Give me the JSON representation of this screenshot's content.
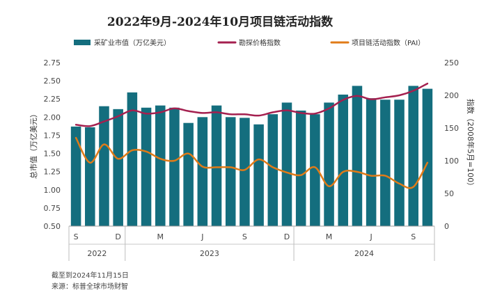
{
  "chart_data": {
    "type": "bar+line",
    "title": "2022年9月-2024年10月项目链活动指数",
    "legend": [
      {
        "label": "采矿业市值（万亿美元）",
        "kind": "bar",
        "color": "#146e7e"
      },
      {
        "label": "勘探价格指数",
        "kind": "line",
        "color": "#a4204f"
      },
      {
        "label": "项目链活动指数（PAI）",
        "kind": "line",
        "color": "#e07b18"
      }
    ],
    "ylabel_left": "总市值（万亿美元）",
    "ylabel_right": "指数（2008年5月=100）",
    "ylim_left": [
      0.5,
      2.75
    ],
    "ylim_right": [
      0,
      250
    ],
    "y_ticks_left": [
      "0.50",
      "0.75",
      "1.00",
      "1.25",
      "1.50",
      "1.75",
      "2.00",
      "2.25",
      "2.50",
      "2.75"
    ],
    "y_ticks_right": [
      "0",
      "50",
      "100",
      "150",
      "200",
      "250"
    ],
    "x_ticks": [
      {
        "index": 0,
        "label": "S"
      },
      {
        "index": 3,
        "label": "D"
      },
      {
        "index": 6,
        "label": "M"
      },
      {
        "index": 9,
        "label": "J"
      },
      {
        "index": 12,
        "label": "S"
      },
      {
        "index": 15,
        "label": "D"
      },
      {
        "index": 18,
        "label": "M"
      },
      {
        "index": 21,
        "label": "J"
      },
      {
        "index": 24,
        "label": "S"
      }
    ],
    "year_groups": [
      {
        "label": "2022",
        "start": 0,
        "end": 3
      },
      {
        "label": "2023",
        "start": 4,
        "end": 15
      },
      {
        "label": "2024",
        "start": 16,
        "end": 25
      }
    ],
    "months": [
      "2022-09",
      "2022-10",
      "2022-11",
      "2022-12",
      "2023-01",
      "2023-02",
      "2023-03",
      "2023-04",
      "2023-05",
      "2023-06",
      "2023-07",
      "2023-08",
      "2023-09",
      "2023-10",
      "2023-11",
      "2023-12",
      "2024-01",
      "2024-02",
      "2024-03",
      "2024-04",
      "2024-05",
      "2024-06",
      "2024-07",
      "2024-08",
      "2024-09",
      "2024-10"
    ],
    "market_cap": [
      1.87,
      1.86,
      2.15,
      2.11,
      2.34,
      2.13,
      2.16,
      2.13,
      1.92,
      2.0,
      2.16,
      2.0,
      1.99,
      1.9,
      2.04,
      2.2,
      2.09,
      2.04,
      2.2,
      2.31,
      2.43,
      2.26,
      2.24,
      2.24,
      2.43,
      2.39
    ],
    "exploration_price_index": [
      155,
      153,
      160,
      168,
      177,
      172,
      174,
      180,
      176,
      173,
      174,
      171,
      171,
      169,
      174,
      177,
      173,
      172,
      180,
      193,
      199,
      194,
      197,
      200,
      207,
      218
    ],
    "pai": [
      135,
      97,
      125,
      103,
      116,
      114,
      103,
      100,
      111,
      91,
      90,
      90,
      86,
      102,
      90,
      82,
      78,
      90,
      61,
      83,
      83,
      77,
      77,
      65,
      60,
      97
    ]
  },
  "footnote": {
    "date": "截至到2024年11月15日",
    "source": "来源：标普全球市场财智"
  }
}
